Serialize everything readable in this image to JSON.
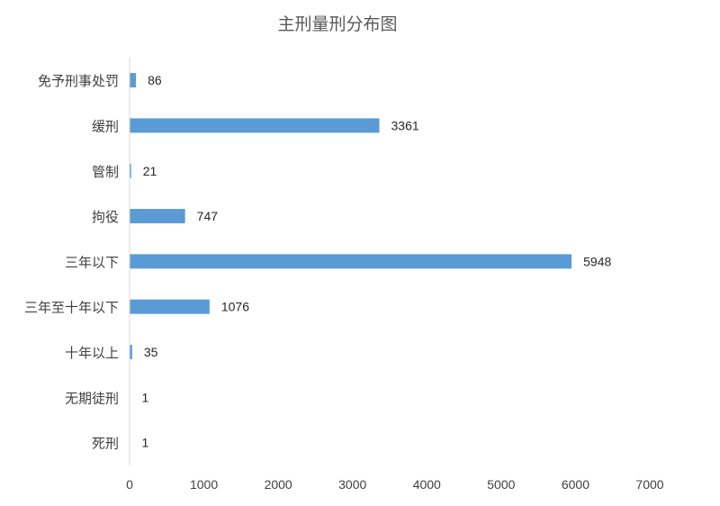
{
  "chart_data": {
    "type": "bar",
    "orientation": "horizontal",
    "title": "主刑量刑分布图",
    "xlabel": "",
    "ylabel": "",
    "categories": [
      "免予刑事处罚",
      "缓刑",
      "管制",
      "拘役",
      "三年以下",
      "三年至十年以下",
      "十年以上",
      "无期徒刑",
      "死刑"
    ],
    "values": [
      86,
      3361,
      21,
      747,
      5948,
      1076,
      35,
      1,
      1
    ],
    "xlim": [
      0,
      7000
    ],
    "xticks": [
      0,
      1000,
      2000,
      3000,
      4000,
      5000,
      6000,
      7000
    ],
    "grid": false,
    "legend": "none",
    "bar_color": "#5b9bd5",
    "axis_color": "#d9d9d9"
  }
}
